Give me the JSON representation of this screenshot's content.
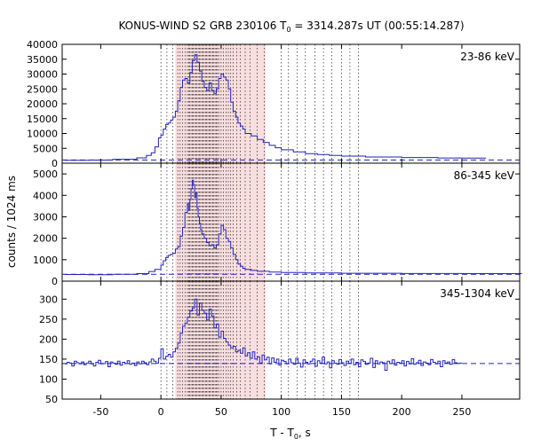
{
  "chart_data": {
    "type": "line",
    "title": "KONUS-WIND S2 GRB 230106 T",
    "title_sub": "0",
    "title_rest": " = 3314.287s UT (00:55:14.287)",
    "xlabel": "T - T",
    "xlabel_sub": "0",
    "xlabel_rest": ", s",
    "ylabel": "counts / 1024 ms",
    "xlim": [
      -82,
      298
    ],
    "x_ticks": [
      -50,
      0,
      50,
      100,
      150,
      200,
      250
    ],
    "colors": {
      "series": "#2222bb",
      "background_level": "#2222bb",
      "shade": "#f8dede",
      "interval_lines": "#000000"
    },
    "shaded_interval": [
      12,
      87
    ],
    "dotted_lines_x": [
      0,
      5,
      10,
      14,
      16,
      18,
      20,
      22,
      23,
      24,
      25,
      26,
      27,
      28,
      29,
      30,
      31,
      32,
      33,
      34,
      35,
      36,
      37,
      38,
      39,
      40,
      41,
      42,
      43,
      44,
      45,
      46,
      47,
      48,
      50,
      52,
      54,
      56,
      58,
      60,
      63,
      66,
      70,
      74,
      80,
      86,
      100,
      106,
      113,
      120,
      128,
      135,
      142,
      150,
      157,
      164
    ],
    "panels": [
      {
        "label": "23-86 keV",
        "ylim": [
          0,
          40000
        ],
        "y_ticks": [
          0,
          5000,
          10000,
          15000,
          20000,
          25000,
          30000,
          35000,
          40000
        ],
        "background": 1100,
        "x": [
          -80,
          -60,
          -40,
          -20,
          -12,
          -8,
          -5,
          -2,
          0,
          2,
          4,
          6,
          8,
          10,
          12,
          14,
          16,
          18,
          20,
          22,
          24,
          26,
          28,
          30,
          32,
          34,
          36,
          38,
          40,
          42,
          44,
          46,
          48,
          50,
          52,
          54,
          56,
          58,
          60,
          62,
          64,
          66,
          68,
          70,
          75,
          80,
          85,
          90,
          95,
          100,
          110,
          120,
          130,
          140,
          150,
          170,
          200,
          230,
          250
        ],
        "y": [
          1000,
          1050,
          1300,
          1800,
          2600,
          3500,
          5500,
          8500,
          9500,
          11500,
          13000,
          13500,
          14500,
          15500,
          17500,
          21000,
          25500,
          28000,
          28500,
          27000,
          30500,
          34500,
          36500,
          34000,
          31000,
          27500,
          25500,
          24500,
          27000,
          24500,
          23500,
          25000,
          28500,
          30000,
          29000,
          28000,
          25000,
          20500,
          17500,
          15500,
          13500,
          12500,
          11500,
          10000,
          9200,
          8000,
          7000,
          6000,
          5200,
          4500,
          3800,
          3200,
          2900,
          2600,
          2400,
          2100,
          1900,
          1750,
          1700
        ]
      },
      {
        "label": "86-345 keV",
        "ylim": [
          0,
          5500
        ],
        "y_ticks": [
          0,
          1000,
          2000,
          3000,
          4000,
          5000
        ],
        "background": 320,
        "x": [
          -80,
          -60,
          -40,
          -20,
          -10,
          -5,
          0,
          2,
          4,
          6,
          8,
          10,
          12,
          14,
          16,
          18,
          20,
          22,
          23,
          24,
          25,
          26,
          27,
          28,
          29,
          30,
          31,
          32,
          33,
          34,
          36,
          38,
          40,
          42,
          44,
          46,
          48,
          50,
          52,
          54,
          56,
          58,
          60,
          62,
          64,
          66,
          68,
          70,
          75,
          80,
          90,
          100,
          120,
          150,
          200,
          250
        ],
        "y": [
          310,
          300,
          320,
          350,
          450,
          550,
          750,
          950,
          1100,
          1200,
          1250,
          1300,
          1500,
          1600,
          2100,
          2500,
          3200,
          3600,
          3300,
          3800,
          4300,
          4700,
          4500,
          3900,
          4100,
          3400,
          3000,
          2700,
          2400,
          2200,
          2000,
          1800,
          1650,
          1700,
          1550,
          1700,
          2200,
          2600,
          2400,
          2000,
          1850,
          1550,
          1250,
          1000,
          800,
          700,
          600,
          550,
          500,
          460,
          420,
          400,
          380,
          370,
          355,
          350
        ]
      },
      {
        "label": "345-1304 keV",
        "ylim": [
          50,
          345
        ],
        "y_ticks": [
          50,
          100,
          150,
          200,
          250,
          300
        ],
        "background": 139,
        "x": [
          -80,
          -78,
          -76,
          -74,
          -72,
          -70,
          -68,
          -66,
          -64,
          -62,
          -60,
          -58,
          -56,
          -54,
          -52,
          -50,
          -48,
          -46,
          -44,
          -42,
          -40,
          -38,
          -36,
          -34,
          -32,
          -30,
          -28,
          -26,
          -24,
          -22,
          -20,
          -18,
          -16,
          -14,
          -12,
          -10,
          -8,
          -6,
          -4,
          -2,
          0,
          2,
          4,
          6,
          8,
          10,
          12,
          14,
          16,
          18,
          20,
          22,
          24,
          26,
          28,
          30,
          32,
          34,
          36,
          38,
          40,
          42,
          44,
          46,
          48,
          50,
          52,
          54,
          56,
          58,
          60,
          62,
          64,
          66,
          68,
          70,
          72,
          74,
          76,
          78,
          80,
          82,
          84,
          86,
          88,
          90,
          92,
          94,
          96,
          98,
          100,
          102,
          104,
          106,
          108,
          110,
          112,
          114,
          116,
          118,
          120,
          122,
          124,
          126,
          128,
          130,
          132,
          134,
          136,
          138,
          140,
          142,
          144,
          146,
          148,
          150,
          152,
          154,
          156,
          158,
          160,
          162,
          164,
          166,
          168,
          170,
          172,
          174,
          176,
          178,
          180,
          182,
          184,
          186,
          188,
          190,
          192,
          194,
          196,
          198,
          200,
          202,
          204,
          206,
          208,
          210,
          212,
          214,
          216,
          218,
          220,
          222,
          224,
          226,
          228,
          230,
          232,
          234,
          236,
          238,
          240,
          242,
          244,
          246,
          248
        ],
        "y": [
          138,
          142,
          140,
          133,
          145,
          141,
          138,
          143,
          136,
          140,
          145,
          138,
          133,
          142,
          147,
          138,
          139,
          144,
          131,
          143,
          140,
          137,
          145,
          135,
          142,
          139,
          146,
          137,
          140,
          134,
          143,
          138,
          145,
          141,
          136,
          143,
          150,
          145,
          140,
          152,
          176,
          150,
          157,
          162,
          155,
          168,
          177,
          190,
          215,
          232,
          240,
          255,
          270,
          278,
          300,
          260,
          290,
          272,
          265,
          248,
          275,
          258,
          228,
          238,
          205,
          220,
          202,
          193,
          185,
          178,
          182,
          168,
          172,
          165,
          178,
          158,
          166,
          152,
          168,
          150,
          156,
          140,
          160,
          148,
          155,
          138,
          153,
          142,
          150,
          135,
          147,
          144,
          138,
          150,
          141,
          137,
          152,
          140,
          130,
          148,
          142,
          138,
          145,
          150,
          132,
          146,
          140,
          155,
          138,
          143,
          128,
          146,
          140,
          137,
          149,
          141,
          134,
          145,
          139,
          150,
          136,
          142,
          131,
          148,
          144,
          137,
          140,
          152,
          129,
          146,
          138,
          143,
          141,
          122,
          145,
          139,
          148,
          135,
          142,
          140,
          146,
          133,
          144,
          138,
          151,
          137,
          141,
          147,
          134,
          143,
          140,
          136,
          149,
          142,
          138,
          145,
          131,
          146,
          140,
          143,
          137,
          149,
          141,
          139,
          140
        ]
      }
    ]
  }
}
